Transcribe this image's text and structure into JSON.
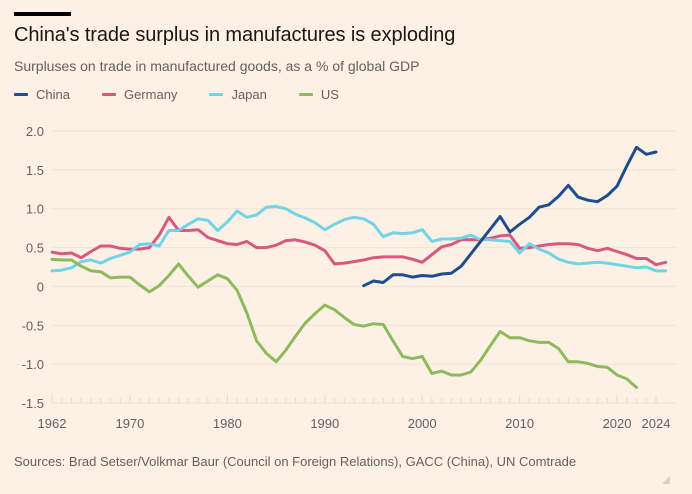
{
  "chart_data": {
    "type": "line",
    "title": "China's trade surplus in manufactures is exploding",
    "subtitle": "Surpluses on trade in manufactured goods, as a % of global GDP",
    "xlabel": "",
    "ylabel": "",
    "source": "Sources: Brad Setser/Volkmar Baur (Council on Foreign Relations), GACC (China), UN Comtrade",
    "ylim": [
      -1.5,
      2.0
    ],
    "xlim": [
      1962,
      2024
    ],
    "yticks": [
      "2.0",
      "1.5",
      "1.0",
      "0.5",
      "0",
      "-0.5",
      "-1.0",
      "-1.5"
    ],
    "ytick_values": [
      2.0,
      1.5,
      1.0,
      0.5,
      0,
      -0.5,
      -1.0,
      -1.5
    ],
    "xticks": [
      "1962",
      "1970",
      "1980",
      "1990",
      "2000",
      "2010",
      "2020",
      "2024"
    ],
    "xtick_values": [
      1962,
      1970,
      1980,
      1990,
      2000,
      2010,
      2020,
      2024
    ],
    "grid": true,
    "legend_position": "top-left",
    "series": [
      {
        "name": "China",
        "color": "#1F4E8C",
        "start_year": 1994,
        "values": [
          0.01,
          0.07,
          0.05,
          0.15,
          0.15,
          0.12,
          0.14,
          0.13,
          0.16,
          0.17,
          0.26,
          0.42,
          0.58,
          0.74,
          0.9,
          0.7,
          0.8,
          0.89,
          1.02,
          1.05,
          1.16,
          1.3,
          1.15,
          1.11,
          1.09,
          1.17,
          1.29,
          1.55,
          1.79,
          1.7,
          1.73
        ]
      },
      {
        "name": "Germany",
        "color": "#D9587F",
        "start_year": 1962,
        "values": [
          0.44,
          0.42,
          0.43,
          0.37,
          0.45,
          0.52,
          0.52,
          0.49,
          0.48,
          0.48,
          0.5,
          0.66,
          0.89,
          0.72,
          0.72,
          0.73,
          0.63,
          0.59,
          0.55,
          0.54,
          0.58,
          0.5,
          0.5,
          0.53,
          0.59,
          0.6,
          0.57,
          0.53,
          0.46,
          0.29,
          0.3,
          0.32,
          0.34,
          0.37,
          0.38,
          0.38,
          0.38,
          0.35,
          0.31,
          0.41,
          0.51,
          0.54,
          0.6,
          0.6,
          0.6,
          0.62,
          0.65,
          0.66,
          0.49,
          0.5,
          0.52,
          0.54,
          0.55,
          0.55,
          0.54,
          0.49,
          0.46,
          0.49,
          0.45,
          0.41,
          0.36,
          0.36,
          0.28,
          0.31
        ]
      },
      {
        "name": "Japan",
        "color": "#73D3E6",
        "start_year": 1962,
        "values": [
          0.2,
          0.21,
          0.24,
          0.32,
          0.34,
          0.3,
          0.36,
          0.4,
          0.44,
          0.54,
          0.55,
          0.52,
          0.72,
          0.72,
          0.8,
          0.87,
          0.85,
          0.72,
          0.83,
          0.97,
          0.89,
          0.92,
          1.02,
          1.03,
          1.0,
          0.93,
          0.88,
          0.82,
          0.73,
          0.8,
          0.86,
          0.89,
          0.87,
          0.8,
          0.64,
          0.69,
          0.68,
          0.69,
          0.73,
          0.58,
          0.61,
          0.61,
          0.62,
          0.66,
          0.6,
          0.6,
          0.59,
          0.58,
          0.43,
          0.55,
          0.48,
          0.43,
          0.35,
          0.31,
          0.29,
          0.3,
          0.31,
          0.3,
          0.28,
          0.26,
          0.24,
          0.25,
          0.2,
          0.2
        ]
      },
      {
        "name": "US",
        "color": "#8DBA5B",
        "start_year": 1962,
        "values": [
          0.35,
          0.34,
          0.34,
          0.26,
          0.2,
          0.19,
          0.11,
          0.12,
          0.12,
          0.02,
          -0.07,
          0.01,
          0.14,
          0.29,
          0.13,
          -0.01,
          0.07,
          0.15,
          0.1,
          -0.05,
          -0.34,
          -0.7,
          -0.86,
          -0.97,
          -0.82,
          -0.64,
          -0.47,
          -0.35,
          -0.24,
          -0.3,
          -0.4,
          -0.49,
          -0.51,
          -0.48,
          -0.49,
          -0.7,
          -0.9,
          -0.93,
          -0.9,
          -1.12,
          -1.09,
          -1.14,
          -1.14,
          -1.1,
          -0.95,
          -0.76,
          -0.58,
          -0.66,
          -0.66,
          -0.7,
          -0.72,
          -0.72,
          -0.8,
          -0.97,
          -0.97,
          -0.99,
          -1.03,
          -1.04,
          -1.14,
          -1.19,
          -1.3
        ]
      }
    ]
  }
}
